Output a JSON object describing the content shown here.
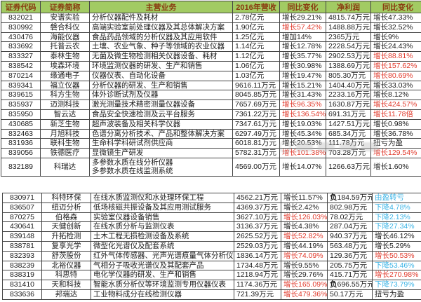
{
  "page": {
    "background": "#ffffff"
  },
  "colors": {
    "header_bg": "#a2cb63",
    "header_text": "#8a3a10",
    "growth_highlight_red": "#e13a2c",
    "decline_cyan": "#3bb4e6",
    "body_text": "#1c1c1c",
    "grid_border": "#454545"
  },
  "row_format": [
    "code",
    "name",
    "business",
    "revenue",
    "revenue_yoy",
    "revenue_yoy_color(k=black,r=red,b=cyan)",
    "net_profit",
    "profit_yoy",
    "profit_yoy_color"
  ],
  "chart_data": [
    {
      "type": "table",
      "name": "top-table",
      "columns": [
        "证券代码",
        "证券简称",
        "主营业务",
        "2016年营收",
        "同比变化",
        "净利润",
        "同比变化"
      ],
      "rows": [
        [
          "832021",
          "安谱实验",
          "分析仪器配件及耗材",
          "2.78亿元",
          "增长29.21%",
          "k",
          "4815.74万元",
          "增长47.33%",
          "k"
        ],
        [
          "830992",
          "磐合科仪",
          "高端实验室前处理仪器及其总体解决方案",
          "1.90亿元",
          "增长57.42%",
          "r",
          "1488.88万元",
          "增长32.52%",
          "k"
        ],
        [
          "430476",
          "海能仪器",
          "食品药品领域的分析仪器及其应用软件",
          "1.25亿元",
          "增加14%",
          "k",
          "2365万元",
          "增长9%",
          "k"
        ],
        [
          "833692",
          "托普云农",
          "土壤、农业气象、种子等领域的农业仪器",
          "1.14亿元",
          "增长12.78%",
          "k",
          "2228.54万元",
          "增长24.43%",
          "k"
        ],
        [
          "833327",
          "泰林生物",
          "无菌及微生物检测相关仪器设备、耗材",
          "1.12亿元",
          "增长35.77%",
          "k",
          "2902.53万元",
          "增长88.81%",
          "r"
        ],
        [
          "838542",
          "埃森环境",
          "环境监测仪器的研发、生产和销售",
          "1.06亿元",
          "增长30.98%",
          "k",
          "1388.69万元",
          "增长157.62%",
          "r"
        ],
        [
          "870214",
          "缘通电子",
          "仪器仪表、自动化设备",
          "1.03亿元",
          "增长19.47%",
          "k",
          "805.30万元",
          "增长80.69%",
          "r"
        ],
        [
          "839341",
          "福立仪器",
          "分析仪器的研发、生产和销售",
          "9616.11万元",
          "增长15.21%",
          "k",
          "1404.40万元",
          "增长33.03%",
          "k"
        ],
        [
          "839615",
          "科方生物",
          "体外诊断试剂及仪器",
          "8045.85万元",
          "增长31.43%",
          "k",
          "2233.16万元",
          "增长8.12%",
          "k"
        ],
        [
          "835937",
          "迈测科技",
          "激光测量技术精密测量仪器设备",
          "7657.69万元",
          "增长96.35%",
          "r",
          "1630.87万元",
          "增长424.57%",
          "r"
        ],
        [
          "835950",
          "智云达",
          "食品安全快速检测及云平台服务",
          "7361.22万元",
          "增长136.54%",
          "r",
          "691.31万元",
          "增长11.78倍",
          "r"
        ],
        [
          "430685",
          "新芝生物",
          "超声波装备及相关科学仪器",
          "7347.61万元",
          "增长19.03%",
          "k",
          "1427.51万元",
          "增长0.98%",
          "k"
        ],
        [
          "832463",
          "月旭科技",
          "色谱分离分析技术、产品和整体解决方案",
          "6297.49万元",
          "增长45.34%",
          "k",
          "685.34万元",
          "增长36.78%",
          "k"
        ],
        [
          "831936",
          "联科生物",
          "生命科学科研试剂供应商",
          "6018.81万元",
          "增长20.53%",
          "k",
          "111.78万元",
          "扭亏为盈",
          "k"
        ],
        [
          "839056",
          "铁德医疗",
          "显微镜生产研发",
          "5782.31万元",
          "增长101.38%",
          "r",
          "703.28万元",
          "增长129.54%",
          "r"
        ],
        [
          "832189",
          "科瑞达",
          "多参数水质在线分析仪器\n多参数水质在线监测系统",
          "4569.00万元",
          "增长14.07%",
          "k",
          "1266.63万元",
          "增长1.60%",
          "k"
        ]
      ]
    },
    {
      "type": "table",
      "name": "bottom-table",
      "columns": [
        "证券代码",
        "证券简称",
        "主营业务",
        "2016年营收",
        "同比变化",
        "净利润",
        "同比变化"
      ],
      "rows": [
        [
          "830971",
          "科特环保",
          "在线水质监测仪和水处理环保工程",
          "4562.21万元",
          "增长11.57%",
          "k",
          "负184.59万元",
          "由盈转亏",
          "b"
        ],
        [
          "836507",
          "纽迈分析",
          "低场核磁共振设备及其应用测试服务",
          "4369.37万元",
          "增长2.42%",
          "k",
          "802.98万元",
          "下降4.78%",
          "b"
        ],
        [
          "870275",
          "伯格森",
          "实验室仪器设备销售",
          "3627.10万元",
          "增长126.03%",
          "r",
          "78.02万元",
          "下降2.13%",
          "b"
        ],
        [
          "430641",
          "天健创新",
          "在线水质分析与监测仪表",
          "3136.37万元",
          "增长4.38%",
          "k",
          "287.04万元",
          "下降27.34%",
          "b"
        ],
        [
          "839148",
          "升拓检测",
          "土木工程无损检测设备及系统",
          "2625.52万元",
          "增长52.82%",
          "r",
          "940.37万元",
          "增长46.12%",
          "k"
        ],
        [
          "838781",
          "复享光学",
          "微型化光谱仪及配套系统",
          "2529.03万元",
          "增长44.19%",
          "k",
          "563.48万元",
          "增长5.29%",
          "k"
        ],
        [
          "832393",
          "舒茨股份",
          "红外气体传感器、光声光谱痕量气体分析仪器",
          "1836.14万元",
          "增长74.09%",
          "r",
          "129.36万元",
          "增长50.53%",
          "r"
        ],
        [
          "838239",
          "北裕仪器",
          "气相分子吸收光谱仪及其配套产品",
          "1734.48万元",
          "增长9.55%",
          "k",
          "205.75万元",
          "下降53.46%",
          "b"
        ],
        [
          "838319",
          "科思特",
          "电化学仪器的研发、生产和销售",
          "1218.94万元",
          "增长29.76%",
          "k",
          "415.71万元",
          "增长270.98%",
          "r"
        ],
        [
          "831410",
          "天和科技",
          "智能水质分析仪等环境监测专用仪器仪表",
          "1174.36万元",
          "增长165.09%",
          "r",
          "负696.55万元",
          "下降73.79%",
          "b"
        ],
        [
          "833636",
          "邦瑞达",
          "工业物料成分在线检测仪器",
          "721.39万元",
          "增长479.36%",
          "r",
          "50.17万元",
          "扭亏为盈",
          "k"
        ]
      ]
    }
  ]
}
